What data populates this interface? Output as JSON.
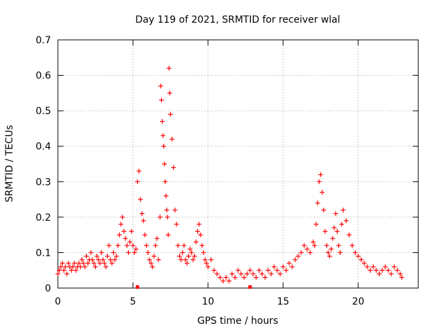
{
  "chart_data": {
    "type": "scatter",
    "title": "Day 119 of 2021, SRMTID for receiver wlal",
    "xlabel": "GPS time / hours",
    "ylabel": "SRMTID / TECUs",
    "xlim": [
      0,
      24
    ],
    "ylim": [
      0,
      0.7
    ],
    "x_ticks": [
      0,
      5,
      10,
      15,
      20
    ],
    "x_tick_labels": [
      "0",
      "5",
      "10",
      "15",
      "20"
    ],
    "y_ticks": [
      0,
      0.1,
      0.2,
      0.3,
      0.4,
      0.5,
      0.6,
      0.7
    ],
    "y_tick_labels": [
      "0",
      "0.1",
      "0.2",
      "0.3",
      "0.4",
      "0.5",
      "0.6",
      "0.7"
    ],
    "grid": true,
    "marker": "+",
    "series": [
      {
        "name": "SRMTID",
        "color": "#ff0000",
        "x": [
          0.0,
          0.1,
          0.2,
          0.3,
          0.4,
          0.5,
          0.6,
          0.7,
          0.8,
          0.9,
          1.0,
          1.1,
          1.2,
          1.3,
          1.4,
          1.5,
          1.6,
          1.7,
          1.8,
          1.9,
          2.0,
          2.1,
          2.2,
          2.3,
          2.4,
          2.5,
          2.6,
          2.7,
          2.8,
          2.9,
          3.0,
          3.1,
          3.2,
          3.3,
          3.4,
          3.5,
          3.6,
          3.7,
          3.8,
          3.9,
          4.0,
          4.1,
          4.2,
          4.3,
          4.4,
          4.5,
          4.6,
          4.7,
          4.8,
          4.9,
          5.0,
          5.1,
          5.2,
          5.3,
          5.4,
          5.5,
          5.6,
          5.7,
          5.8,
          5.9,
          6.0,
          6.1,
          6.2,
          6.3,
          6.4,
          6.5,
          6.6,
          6.7,
          6.8,
          6.85,
          6.9,
          6.95,
          7.0,
          7.05,
          7.1,
          7.15,
          7.2,
          7.25,
          7.3,
          7.35,
          7.4,
          7.45,
          7.5,
          7.6,
          7.7,
          7.8,
          7.9,
          8.0,
          8.1,
          8.2,
          8.3,
          8.4,
          8.5,
          8.6,
          8.7,
          8.8,
          8.9,
          9.0,
          9.1,
          9.2,
          9.3,
          9.4,
          9.5,
          9.6,
          9.7,
          9.8,
          9.9,
          10.0,
          10.2,
          10.4,
          10.6,
          10.8,
          11.0,
          11.2,
          11.4,
          11.6,
          11.8,
          12.0,
          12.2,
          12.4,
          12.6,
          12.8,
          13.0,
          13.2,
          13.4,
          13.6,
          13.8,
          14.0,
          14.2,
          14.4,
          14.6,
          14.8,
          15.0,
          15.2,
          15.4,
          15.6,
          15.8,
          16.0,
          16.2,
          16.4,
          16.6,
          16.8,
          17.0,
          17.1,
          17.2,
          17.3,
          17.4,
          17.5,
          17.6,
          17.7,
          17.8,
          17.9,
          18.0,
          18.1,
          18.2,
          18.3,
          18.4,
          18.5,
          18.6,
          18.7,
          18.8,
          18.9,
          19.0,
          19.2,
          19.4,
          19.6,
          19.8,
          20.0,
          20.2,
          20.4,
          20.6,
          20.8,
          21.0,
          21.2,
          21.4,
          21.6,
          21.8,
          22.0,
          22.2,
          22.4,
          22.6,
          22.8,
          22.9
        ],
        "y": [
          0.04,
          0.05,
          0.06,
          0.07,
          0.05,
          0.06,
          0.04,
          0.07,
          0.06,
          0.05,
          0.06,
          0.07,
          0.05,
          0.06,
          0.07,
          0.06,
          0.08,
          0.07,
          0.06,
          0.09,
          0.07,
          0.08,
          0.1,
          0.08,
          0.07,
          0.06,
          0.09,
          0.08,
          0.07,
          0.1,
          0.08,
          0.07,
          0.06,
          0.09,
          0.12,
          0.08,
          0.07,
          0.1,
          0.08,
          0.09,
          0.12,
          0.15,
          0.18,
          0.2,
          0.16,
          0.14,
          0.12,
          0.1,
          0.13,
          0.16,
          0.12,
          0.1,
          0.11,
          0.3,
          0.33,
          0.25,
          0.21,
          0.19,
          0.15,
          0.12,
          0.1,
          0.08,
          0.07,
          0.06,
          0.09,
          0.12,
          0.14,
          0.08,
          0.2,
          0.57,
          0.53,
          0.47,
          0.43,
          0.4,
          0.35,
          0.3,
          0.26,
          0.22,
          0.2,
          0.15,
          0.62,
          0.55,
          0.49,
          0.42,
          0.34,
          0.22,
          0.18,
          0.12,
          0.09,
          0.08,
          0.1,
          0.12,
          0.08,
          0.07,
          0.09,
          0.11,
          0.1,
          0.08,
          0.09,
          0.13,
          0.16,
          0.18,
          0.15,
          0.12,
          0.1,
          0.08,
          0.07,
          0.06,
          0.08,
          0.05,
          0.04,
          0.03,
          0.02,
          0.03,
          0.02,
          0.04,
          0.03,
          0.05,
          0.04,
          0.03,
          0.04,
          0.05,
          0.04,
          0.03,
          0.05,
          0.04,
          0.03,
          0.05,
          0.04,
          0.06,
          0.05,
          0.04,
          0.06,
          0.05,
          0.07,
          0.06,
          0.08,
          0.09,
          0.1,
          0.12,
          0.11,
          0.1,
          0.13,
          0.12,
          0.18,
          0.24,
          0.3,
          0.32,
          0.27,
          0.22,
          0.16,
          0.12,
          0.1,
          0.09,
          0.11,
          0.14,
          0.17,
          0.21,
          0.16,
          0.12,
          0.1,
          0.18,
          0.22,
          0.19,
          0.15,
          0.12,
          0.1,
          0.09,
          0.08,
          0.07,
          0.06,
          0.05,
          0.06,
          0.05,
          0.04,
          0.05,
          0.06,
          0.05,
          0.04,
          0.06,
          0.05,
          0.04,
          0.03
        ]
      }
    ],
    "extra_markers": [
      {
        "x": 5.3,
        "y": 0.0
      },
      {
        "x": 12.8,
        "y": 0.0
      }
    ]
  }
}
